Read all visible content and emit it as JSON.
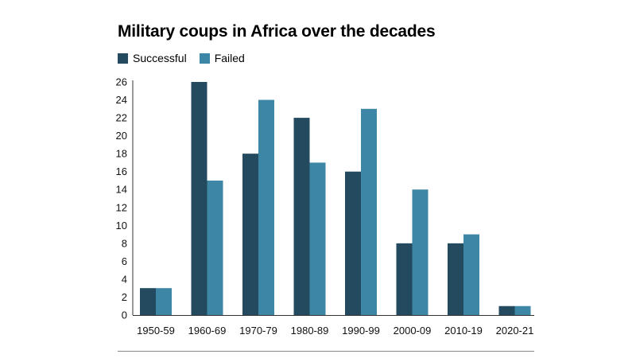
{
  "chart_data": {
    "type": "bar",
    "title": "Military coups in Africa over the decades",
    "xlabel": "",
    "ylabel": "",
    "categories": [
      "1950-59",
      "1960-69",
      "1970-79",
      "1980-89",
      "1990-99",
      "2000-09",
      "2010-19",
      "2020-21"
    ],
    "series": [
      {
        "name": "Successful",
        "color": "#234a5f",
        "values": [
          3,
          26,
          18,
          22,
          16,
          8,
          8,
          1
        ]
      },
      {
        "name": "Failed",
        "color": "#3d86a6",
        "values": [
          3,
          15,
          24,
          17,
          23,
          14,
          9,
          1
        ]
      }
    ],
    "ylim": [
      0,
      26
    ],
    "yticks": [
      0,
      2,
      4,
      6,
      8,
      10,
      12,
      14,
      16,
      18,
      20,
      22,
      24,
      26
    ],
    "grid": false,
    "legend_position": "top-left"
  }
}
